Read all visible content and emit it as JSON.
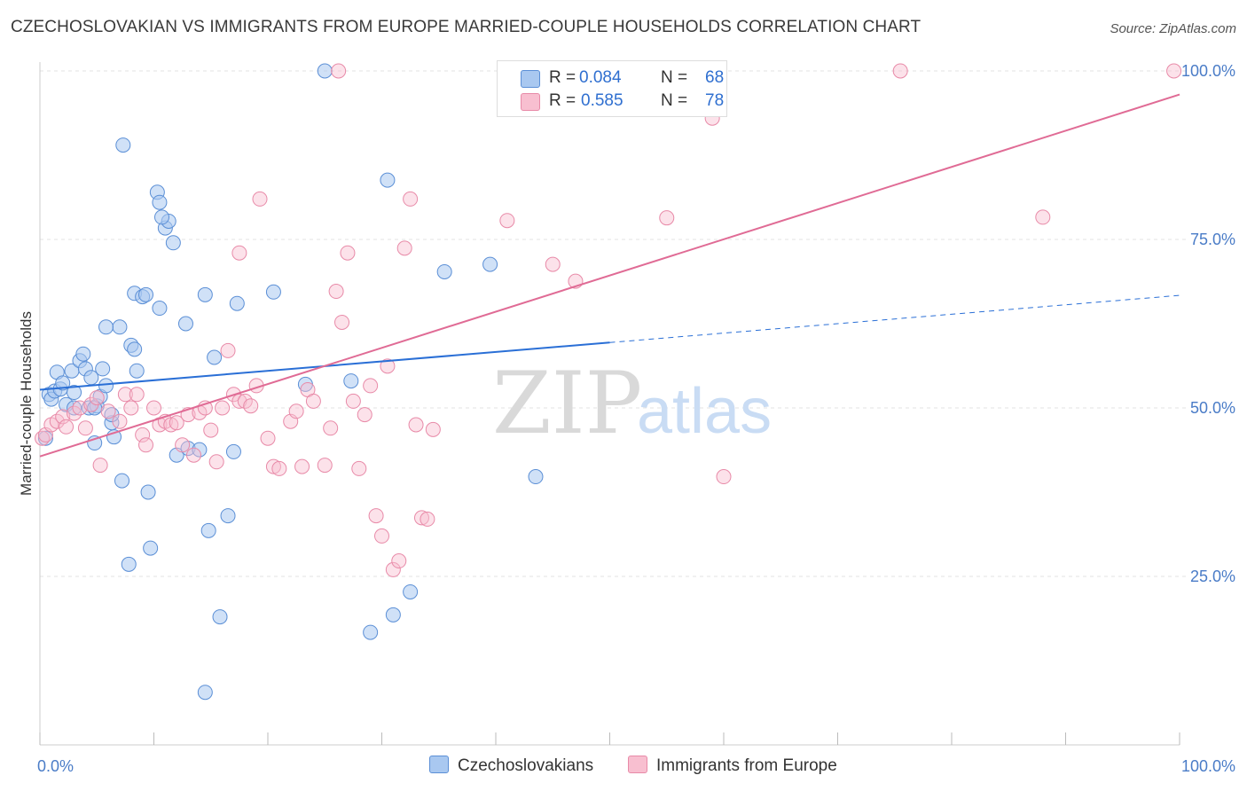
{
  "title": "CZECHOSLOVAKIAN VS IMMIGRANTS FROM EUROPE MARRIED-COUPLE HOUSEHOLDS CORRELATION CHART",
  "source": "Source: ZipAtlas.com",
  "watermark": {
    "zip": "ZIP",
    "atlas": "atlas"
  },
  "legend": {
    "series1": {
      "r_label": "R =",
      "r_value": "0.084",
      "n_label": "N =",
      "n_value": "68"
    },
    "series2": {
      "r_label": "R =",
      "r_value": "0.585",
      "n_label": "N =",
      "n_value": "78"
    }
  },
  "colors": {
    "blue_fill": "#a9c8f0",
    "blue_stroke": "#5b8fd6",
    "blue_line": "#2a6fd6",
    "pink_fill": "#f8bfd0",
    "pink_stroke": "#e88aa8",
    "pink_line": "#e06b95",
    "tick_text": "#4a7cc7"
  },
  "chart_data": {
    "type": "scatter",
    "title": "CZECHOSLOVAKIAN VS IMMIGRANTS FROM EUROPE MARRIED-COUPLE HOUSEHOLDS CORRELATION CHART",
    "xlabel": "",
    "ylabel": "Married-couple Households",
    "xlim": [
      0,
      100
    ],
    "ylim": [
      0,
      104
    ],
    "x_tick_labels": [
      "0.0%",
      "100.0%"
    ],
    "y_ticks": [
      25,
      50,
      75,
      100
    ],
    "y_tick_labels": [
      "25.0%",
      "50.0%",
      "75.0%",
      "100.0%"
    ],
    "grid": true,
    "series": [
      {
        "name": "Czechoslovakians",
        "r": 0.084,
        "n": 68,
        "trend": {
          "x0": 0,
          "y0": 52.7,
          "x1": 50,
          "y1": 59.7,
          "dashed_to_x": 100,
          "dashed_to_y": 66.7
        },
        "points": [
          [
            0.8,
            52
          ],
          [
            1,
            51.3
          ],
          [
            1.3,
            52.5
          ],
          [
            1.8,
            52.8
          ],
          [
            1.5,
            55.3
          ],
          [
            2,
            53.7
          ],
          [
            2.3,
            50.5
          ],
          [
            3,
            52.3
          ],
          [
            2.8,
            55.5
          ],
          [
            3.5,
            57
          ],
          [
            3.8,
            58
          ],
          [
            4,
            55.8
          ],
          [
            4.3,
            50
          ],
          [
            4.5,
            54.5
          ],
          [
            5,
            50.3
          ],
          [
            5.3,
            51.7
          ],
          [
            5.5,
            55.8
          ],
          [
            5.8,
            53.3
          ],
          [
            4.8,
            50
          ],
          [
            6.3,
            47.8
          ],
          [
            6.3,
            49
          ],
          [
            4.8,
            44.8
          ],
          [
            6.5,
            45.7
          ],
          [
            7,
            62
          ],
          [
            5.8,
            62
          ],
          [
            8,
            59.3
          ],
          [
            8.3,
            58.7
          ],
          [
            8.5,
            55.5
          ],
          [
            8.3,
            67
          ],
          [
            9,
            66.5
          ],
          [
            7.2,
            39.2
          ],
          [
            9.5,
            37.5
          ],
          [
            9.3,
            66.8
          ],
          [
            9.7,
            29.2
          ],
          [
            7.8,
            26.8
          ],
          [
            10.5,
            64.8
          ],
          [
            11,
            76.7
          ],
          [
            11.3,
            77.7
          ],
          [
            11.7,
            74.5
          ],
          [
            10.3,
            82
          ],
          [
            10.5,
            80.5
          ],
          [
            10.7,
            78.3
          ],
          [
            12,
            43
          ],
          [
            12.8,
            62.5
          ],
          [
            13,
            44
          ],
          [
            14,
            43.8
          ],
          [
            14.5,
            66.8
          ],
          [
            14.8,
            31.8
          ],
          [
            15.3,
            57.5
          ],
          [
            15.8,
            19
          ],
          [
            16.5,
            34
          ],
          [
            17,
            43.5
          ],
          [
            17.3,
            65.5
          ],
          [
            14.5,
            7.8
          ],
          [
            20.5,
            67.2
          ],
          [
            23.3,
            53.5
          ],
          [
            25,
            100
          ],
          [
            27.3,
            54
          ],
          [
            29,
            16.7
          ],
          [
            30.5,
            83.8
          ],
          [
            31,
            19.3
          ],
          [
            32.5,
            22.7
          ],
          [
            35.5,
            70.2
          ],
          [
            39.5,
            71.3
          ],
          [
            43.5,
            39.8
          ],
          [
            7.3,
            89
          ],
          [
            0.5,
            45.5
          ],
          [
            3,
            50
          ]
        ]
      },
      {
        "name": "Immigrants from Europe",
        "r": 0.585,
        "n": 78,
        "trend": {
          "x0": 0,
          "y0": 42.8,
          "x1": 100,
          "y1": 96.5
        },
        "points": [
          [
            0.2,
            45.5
          ],
          [
            0.5,
            46
          ],
          [
            1,
            47.5
          ],
          [
            1.5,
            48
          ],
          [
            2,
            48.7
          ],
          [
            2.3,
            47.2
          ],
          [
            3,
            49.2
          ],
          [
            3.5,
            50
          ],
          [
            4,
            47
          ],
          [
            4.5,
            50.5
          ],
          [
            5,
            51.5
          ],
          [
            5.3,
            41.5
          ],
          [
            6,
            49.5
          ],
          [
            7,
            48
          ],
          [
            7.5,
            52
          ],
          [
            8,
            50
          ],
          [
            8.5,
            52
          ],
          [
            9,
            46
          ],
          [
            9.3,
            44.5
          ],
          [
            10,
            50
          ],
          [
            10.5,
            47.5
          ],
          [
            11,
            48
          ],
          [
            11.5,
            47.5
          ],
          [
            12,
            47.8
          ],
          [
            12.5,
            44.5
          ],
          [
            13,
            49
          ],
          [
            13.5,
            43
          ],
          [
            14,
            49.3
          ],
          [
            14.5,
            50
          ],
          [
            15,
            46.7
          ],
          [
            15.5,
            42
          ],
          [
            16,
            50
          ],
          [
            16.5,
            58.5
          ],
          [
            17,
            52
          ],
          [
            17.5,
            51
          ],
          [
            18,
            51
          ],
          [
            18.5,
            50.3
          ],
          [
            19,
            53.3
          ],
          [
            20,
            45.5
          ],
          [
            20.5,
            41.3
          ],
          [
            21,
            41
          ],
          [
            22,
            48
          ],
          [
            22.5,
            49.5
          ],
          [
            23,
            41.3
          ],
          [
            23.5,
            52.7
          ],
          [
            24,
            51
          ],
          [
            25,
            41.5
          ],
          [
            25.5,
            47
          ],
          [
            26,
            67.3
          ],
          [
            26.5,
            62.7
          ],
          [
            27,
            73
          ],
          [
            27.5,
            51
          ],
          [
            28,
            41
          ],
          [
            28.5,
            49
          ],
          [
            29,
            53.3
          ],
          [
            29.5,
            34
          ],
          [
            30,
            31
          ],
          [
            30.5,
            56.2
          ],
          [
            31,
            26
          ],
          [
            31.5,
            27.3
          ],
          [
            32,
            73.7
          ],
          [
            32.5,
            81
          ],
          [
            33,
            47.5
          ],
          [
            33.5,
            33.7
          ],
          [
            34,
            33.5
          ],
          [
            34.5,
            46.8
          ],
          [
            17.5,
            73
          ],
          [
            19.3,
            81
          ],
          [
            26.2,
            100
          ],
          [
            41,
            77.8
          ],
          [
            45,
            71.3
          ],
          [
            47,
            68.8
          ],
          [
            55,
            78.2
          ],
          [
            59,
            93
          ],
          [
            60,
            39.8
          ],
          [
            75.5,
            100
          ],
          [
            88,
            78.3
          ],
          [
            99.5,
            100
          ]
        ]
      }
    ]
  },
  "bottom_legend": [
    "Czechoslovakians",
    "Immigrants from Europe"
  ]
}
